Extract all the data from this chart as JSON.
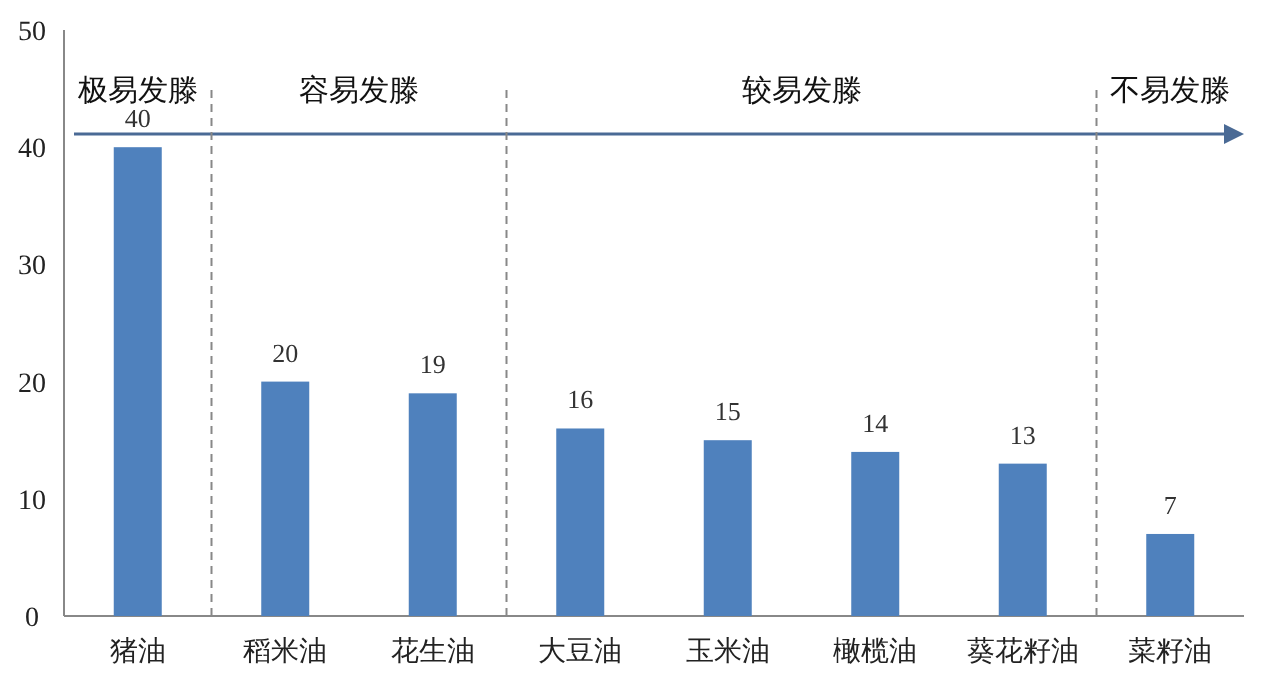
{
  "chart_data": {
    "type": "bar",
    "categories": [
      "猪油",
      "稻米油",
      "花生油",
      "大豆油",
      "玉米油",
      "橄榄油",
      "葵花籽油",
      "菜籽油"
    ],
    "values": [
      40,
      20,
      19,
      16,
      15,
      14,
      13,
      7
    ],
    "color": "#4f81bd",
    "ylim": [
      0,
      50
    ],
    "yticks": [
      0,
      10,
      20,
      30,
      40,
      50
    ],
    "data_labels": true,
    "grid": false,
    "annotations": [
      "极易发滕",
      "容易发滕",
      "较易发滕",
      "不易发滕"
    ]
  }
}
